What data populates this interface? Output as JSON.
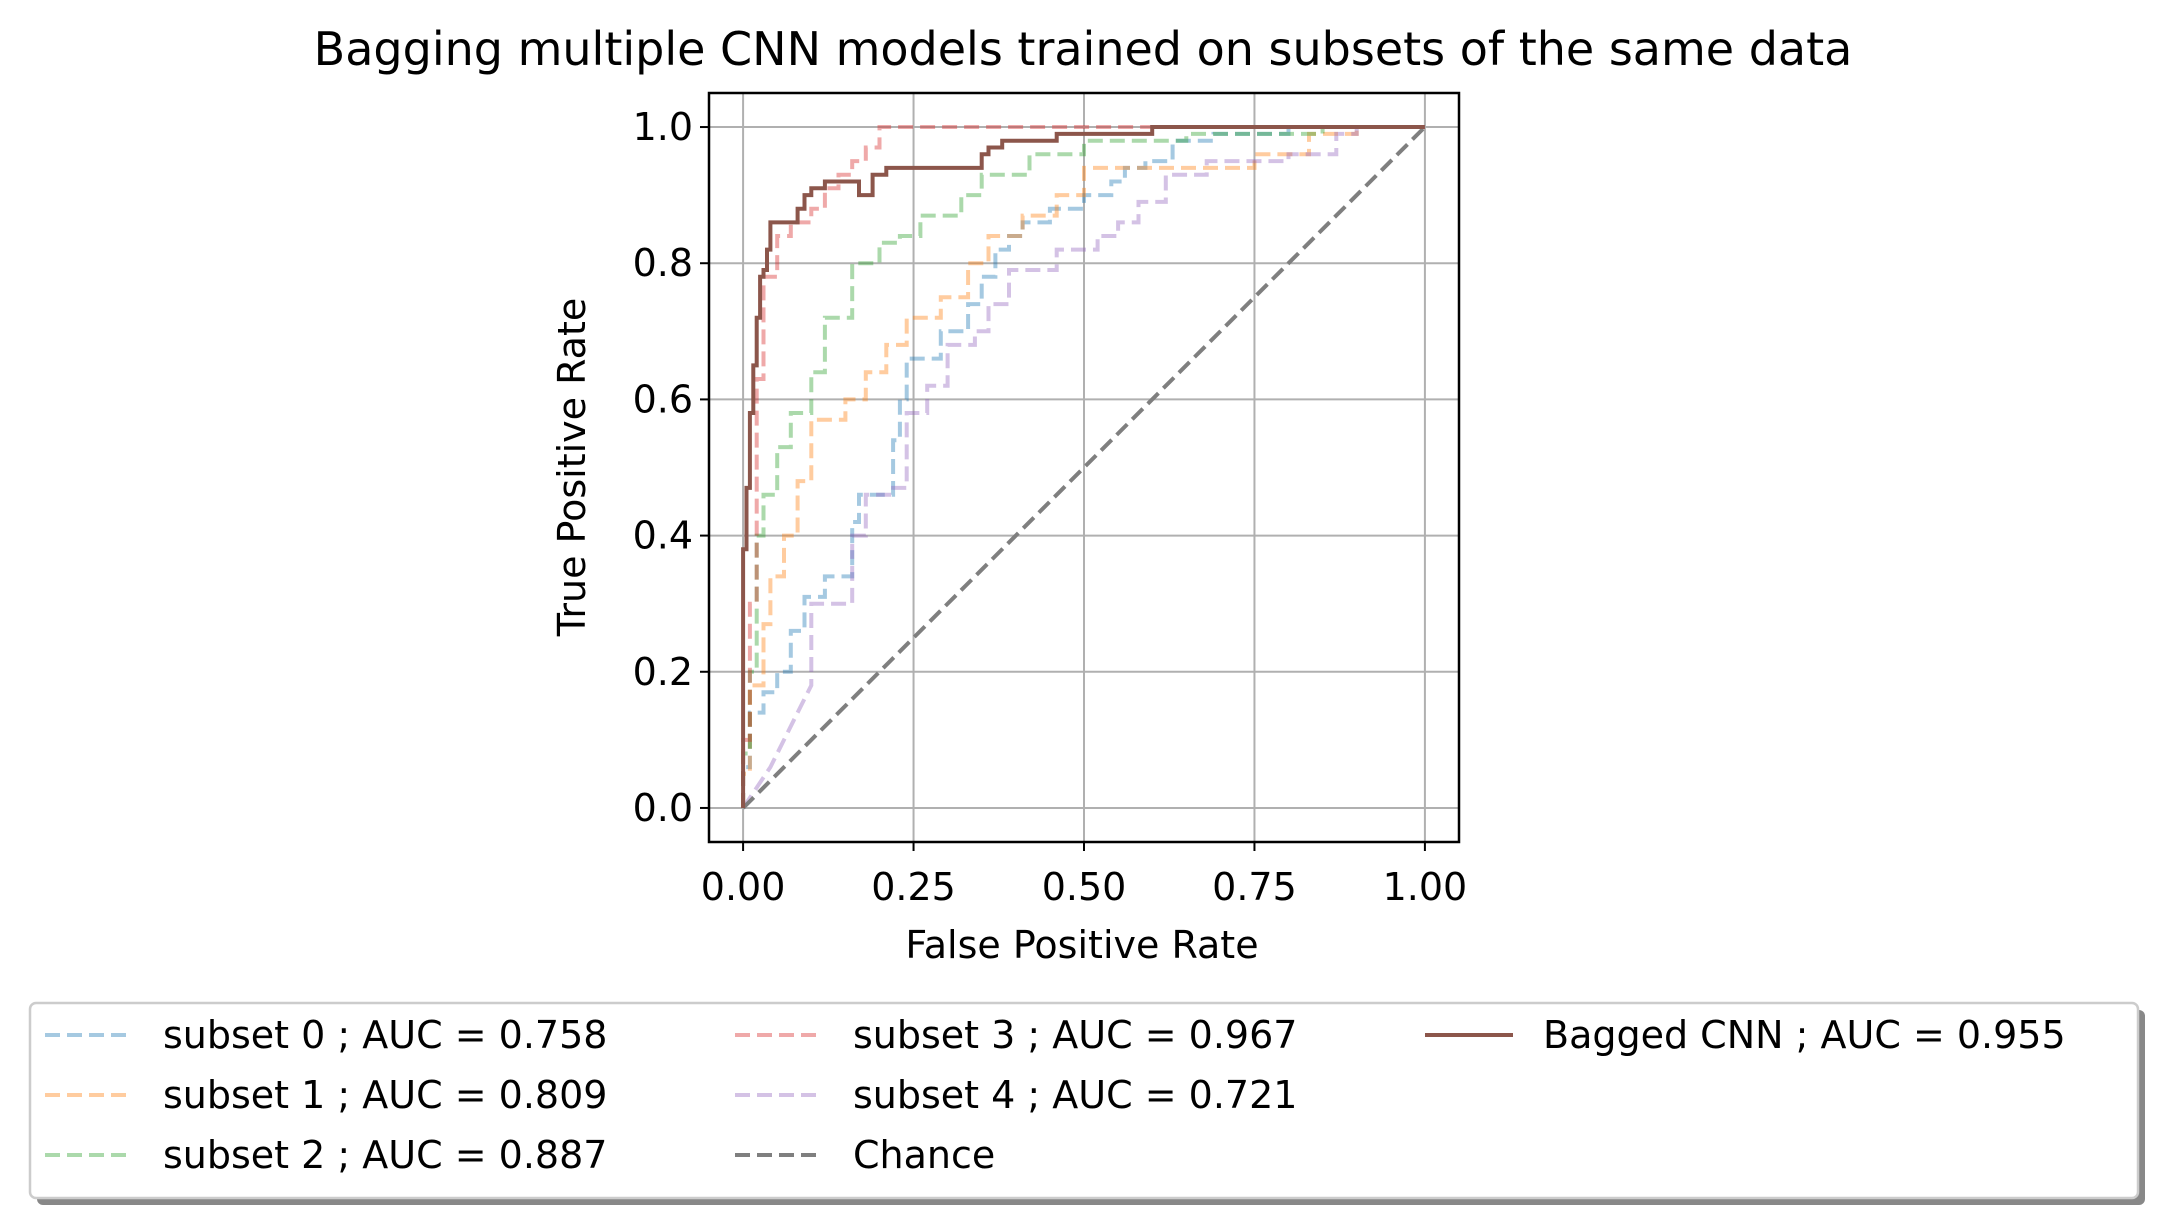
{
  "chart_data": {
    "type": "line",
    "title": "Bagging multiple CNN models trained on subsets of the same data",
    "xlabel": "False Positive Rate",
    "ylabel": "True Positive Rate",
    "xlim": [
      -0.05,
      1.05
    ],
    "ylim": [
      -0.05,
      1.05
    ],
    "xticks": [
      0.0,
      0.25,
      0.5,
      0.75,
      1.0
    ],
    "xtick_labels": [
      "0.00",
      "0.25",
      "0.50",
      "0.75",
      "1.00"
    ],
    "yticks": [
      0.0,
      0.2,
      0.4,
      0.6,
      0.8,
      1.0
    ],
    "ytick_labels": [
      "0.0",
      "0.2",
      "0.4",
      "0.6",
      "0.8",
      "1.0"
    ],
    "grid": true,
    "legend_position": "bottom",
    "series": [
      {
        "name": "subset 0 ; AUC = 0.758",
        "color": "#1f77b4",
        "dash": true,
        "opacity": 0.4,
        "width": 4,
        "x": [
          0,
          0,
          0.01,
          0.01,
          0.03,
          0.03,
          0.05,
          0.05,
          0.07,
          0.07,
          0.09,
          0.09,
          0.12,
          0.12,
          0.16,
          0.16,
          0.17,
          0.17,
          0.19,
          0.19,
          0.22,
          0.22,
          0.23,
          0.23,
          0.24,
          0.24,
          0.29,
          0.29,
          0.33,
          0.33,
          0.35,
          0.35,
          0.37,
          0.37,
          0.39,
          0.39,
          0.41,
          0.41,
          0.45,
          0.45,
          0.5,
          0.5,
          0.54,
          0.54,
          0.56,
          0.56,
          0.59,
          0.59,
          0.63,
          0.63,
          0.69,
          0.69,
          0.8,
          0.8,
          1.0
        ],
        "y": [
          0,
          0.06,
          0.06,
          0.14,
          0.14,
          0.17,
          0.17,
          0.2,
          0.2,
          0.26,
          0.26,
          0.31,
          0.31,
          0.34,
          0.34,
          0.42,
          0.42,
          0.46,
          0.46,
          0.46,
          0.46,
          0.54,
          0.54,
          0.6,
          0.6,
          0.66,
          0.66,
          0.7,
          0.7,
          0.74,
          0.74,
          0.78,
          0.78,
          0.82,
          0.82,
          0.84,
          0.84,
          0.86,
          0.86,
          0.88,
          0.88,
          0.9,
          0.9,
          0.92,
          0.92,
          0.94,
          0.94,
          0.95,
          0.95,
          0.98,
          0.98,
          0.99,
          0.99,
          1.0,
          1.0
        ]
      },
      {
        "name": "subset 1 ; AUC = 0.809",
        "color": "#ff7f0e",
        "dash": true,
        "opacity": 0.4,
        "width": 4,
        "x": [
          0,
          0,
          0.01,
          0.01,
          0.03,
          0.03,
          0.04,
          0.04,
          0.06,
          0.06,
          0.08,
          0.08,
          0.1,
          0.1,
          0.15,
          0.15,
          0.18,
          0.18,
          0.21,
          0.21,
          0.24,
          0.24,
          0.29,
          0.29,
          0.33,
          0.33,
          0.36,
          0.36,
          0.41,
          0.41,
          0.46,
          0.46,
          0.5,
          0.5,
          0.59,
          0.59,
          0.75,
          0.75,
          0.83,
          0.83,
          0.9,
          0.9,
          1.0
        ],
        "y": [
          0,
          0.05,
          0.05,
          0.18,
          0.18,
          0.27,
          0.27,
          0.34,
          0.34,
          0.4,
          0.4,
          0.48,
          0.48,
          0.57,
          0.57,
          0.6,
          0.6,
          0.64,
          0.64,
          0.68,
          0.68,
          0.72,
          0.72,
          0.75,
          0.75,
          0.8,
          0.8,
          0.84,
          0.84,
          0.87,
          0.87,
          0.9,
          0.9,
          0.94,
          0.94,
          0.94,
          0.94,
          0.96,
          0.96,
          0.99,
          0.99,
          1.0,
          1.0
        ]
      },
      {
        "name": "subset 2 ; AUC = 0.887",
        "color": "#2ca02c",
        "dash": true,
        "opacity": 0.4,
        "width": 4,
        "x": [
          0,
          0,
          0.01,
          0.01,
          0.02,
          0.02,
          0.03,
          0.03,
          0.05,
          0.05,
          0.07,
          0.07,
          0.1,
          0.1,
          0.12,
          0.12,
          0.16,
          0.16,
          0.2,
          0.2,
          0.23,
          0.23,
          0.26,
          0.26,
          0.32,
          0.32,
          0.35,
          0.35,
          0.42,
          0.42,
          0.5,
          0.5,
          0.65,
          0.65,
          0.85,
          0.85,
          1.0
        ],
        "y": [
          0,
          0.08,
          0.08,
          0.2,
          0.2,
          0.4,
          0.4,
          0.46,
          0.46,
          0.53,
          0.53,
          0.58,
          0.58,
          0.64,
          0.64,
          0.72,
          0.72,
          0.8,
          0.8,
          0.83,
          0.83,
          0.84,
          0.84,
          0.87,
          0.87,
          0.9,
          0.9,
          0.93,
          0.93,
          0.96,
          0.96,
          0.98,
          0.98,
          0.99,
          0.99,
          1.0,
          1.0
        ]
      },
      {
        "name": "subset 3 ; AUC = 0.967",
        "color": "#d62728",
        "dash": true,
        "opacity": 0.4,
        "width": 4,
        "x": [
          0,
          0,
          0.01,
          0.01,
          0.02,
          0.02,
          0.03,
          0.03,
          0.05,
          0.05,
          0.07,
          0.07,
          0.1,
          0.1,
          0.12,
          0.12,
          0.14,
          0.14,
          0.16,
          0.16,
          0.18,
          0.18,
          0.2,
          0.2,
          1.0
        ],
        "y": [
          0,
          0.1,
          0.1,
          0.3,
          0.3,
          0.63,
          0.63,
          0.78,
          0.78,
          0.84,
          0.84,
          0.86,
          0.86,
          0.88,
          0.88,
          0.91,
          0.91,
          0.93,
          0.93,
          0.95,
          0.95,
          0.97,
          0.97,
          1.0,
          1.0
        ]
      },
      {
        "name": "subset 4 ; AUC = 0.721",
        "color": "#9467bd",
        "dash": true,
        "opacity": 0.4,
        "width": 4,
        "x": [
          0,
          0.04,
          0.06,
          0.08,
          0.1,
          0.1,
          0.16,
          0.16,
          0.18,
          0.18,
          0.22,
          0.22,
          0.24,
          0.24,
          0.27,
          0.27,
          0.3,
          0.3,
          0.34,
          0.34,
          0.36,
          0.36,
          0.39,
          0.39,
          0.46,
          0.46,
          0.52,
          0.52,
          0.55,
          0.55,
          0.58,
          0.58,
          0.62,
          0.62,
          0.68,
          0.68,
          0.8,
          0.8,
          0.87,
          0.87,
          0.9,
          0.9,
          1.0
        ],
        "y": [
          0,
          0.06,
          0.1,
          0.14,
          0.18,
          0.3,
          0.3,
          0.4,
          0.4,
          0.46,
          0.46,
          0.47,
          0.47,
          0.58,
          0.58,
          0.62,
          0.62,
          0.68,
          0.68,
          0.7,
          0.7,
          0.74,
          0.74,
          0.79,
          0.79,
          0.82,
          0.82,
          0.84,
          0.84,
          0.86,
          0.86,
          0.89,
          0.89,
          0.93,
          0.93,
          0.95,
          0.95,
          0.96,
          0.96,
          0.99,
          0.99,
          1.0,
          1.0
        ]
      },
      {
        "name": "Chance",
        "color": "#7f7f7f",
        "dash": true,
        "opacity": 1.0,
        "width": 4,
        "x": [
          0,
          1
        ],
        "y": [
          0,
          1
        ]
      },
      {
        "name": "Bagged CNN ; AUC = 0.955",
        "color": "#8c564b",
        "dash": false,
        "opacity": 1.0,
        "width": 4,
        "x": [
          0,
          0,
          0.005,
          0.005,
          0.01,
          0.01,
          0.015,
          0.015,
          0.02,
          0.02,
          0.025,
          0.025,
          0.03,
          0.03,
          0.035,
          0.035,
          0.04,
          0.04,
          0.05,
          0.05,
          0.08,
          0.08,
          0.09,
          0.09,
          0.1,
          0.1,
          0.12,
          0.12,
          0.17,
          0.17,
          0.19,
          0.19,
          0.21,
          0.21,
          0.24,
          0.24,
          0.35,
          0.35,
          0.36,
          0.36,
          0.38,
          0.38,
          0.45,
          0.45,
          0.46,
          0.46,
          0.5,
          0.5,
          0.6,
          0.6,
          1.0
        ],
        "y": [
          0,
          0.38,
          0.38,
          0.47,
          0.47,
          0.58,
          0.58,
          0.65,
          0.65,
          0.72,
          0.72,
          0.78,
          0.78,
          0.79,
          0.79,
          0.82,
          0.82,
          0.86,
          0.86,
          0.86,
          0.86,
          0.88,
          0.88,
          0.9,
          0.9,
          0.91,
          0.91,
          0.92,
          0.92,
          0.9,
          0.9,
          0.93,
          0.93,
          0.94,
          0.94,
          0.94,
          0.94,
          0.96,
          0.96,
          0.97,
          0.97,
          0.98,
          0.98,
          0.98,
          0.98,
          0.99,
          0.99,
          0.99,
          0.99,
          1.0,
          1.0
        ]
      }
    ]
  }
}
